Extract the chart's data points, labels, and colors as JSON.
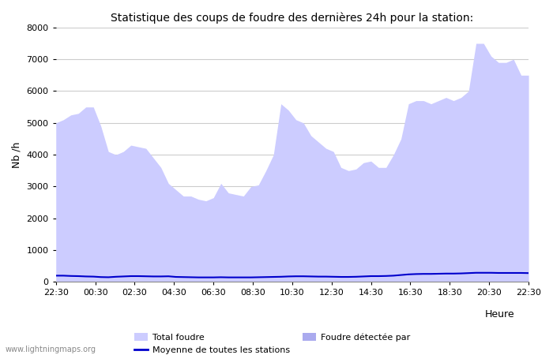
{
  "title": "Statistique des coups de foudre des dernières 24h pour la station:",
  "xlabel": "Heure",
  "ylabel": "Nb /h",
  "ylim": [
    0,
    8000
  ],
  "yticks": [
    0,
    1000,
    2000,
    3000,
    4000,
    5000,
    6000,
    7000,
    8000
  ],
  "xtick_labels": [
    "22:30",
    "00:30",
    "02:30",
    "04:30",
    "06:30",
    "08:30",
    "10:30",
    "12:30",
    "14:30",
    "16:30",
    "18:30",
    "20:30",
    "22:30"
  ],
  "fill_color": "#ccccff",
  "fill_color2": "#aaaaee",
  "line_color": "#0000cc",
  "background_color": "#ffffff",
  "grid_color": "#cccccc",
  "watermark": "www.lightningmaps.org",
  "legend_label1": "Total foudre",
  "legend_label2": "Moyenne de toutes les stations",
  "legend_label3": "Foudre détectée par",
  "total_foudre": [
    5000,
    5100,
    5250,
    5300,
    5500,
    5500,
    4900,
    4100,
    4000,
    4100,
    4300,
    4250,
    4200,
    3900,
    3600,
    3100,
    2900,
    2700,
    2700,
    2600,
    2550,
    2650,
    3100,
    2800,
    2750,
    2700,
    3000,
    3050,
    3500,
    4000,
    5600,
    5400,
    5100,
    5000,
    4600,
    4400,
    4200,
    4100,
    3600,
    3500,
    3550,
    3750,
    3800,
    3600,
    3600,
    4000,
    4500,
    5600,
    5700,
    5700,
    5600,
    5700,
    5800,
    5700,
    5800,
    6000,
    7500,
    7500,
    7100,
    6900,
    6900,
    7000,
    6500,
    6500
  ],
  "moyenne": [
    200,
    200,
    190,
    185,
    175,
    170,
    155,
    150,
    165,
    175,
    185,
    185,
    180,
    175,
    175,
    180,
    160,
    155,
    150,
    145,
    145,
    145,
    150,
    145,
    145,
    145,
    145,
    150,
    155,
    160,
    165,
    175,
    180,
    180,
    175,
    170,
    170,
    165,
    160,
    160,
    165,
    175,
    185,
    185,
    190,
    200,
    220,
    240,
    250,
    255,
    255,
    260,
    265,
    265,
    270,
    280,
    290,
    290,
    290,
    285,
    285,
    285,
    285,
    280
  ]
}
